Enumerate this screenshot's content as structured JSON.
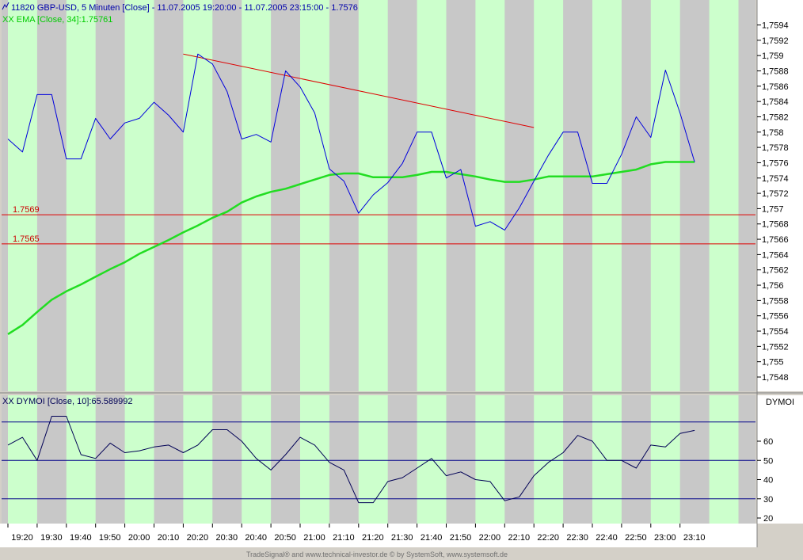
{
  "header": {
    "price_title": "11820  GBP-USD, 5 Minuten [Close] - 11.07.2005 19:20:00 - 11.07.2005 23:15:00 - 1.7576",
    "ema_title": "XX EMA [Close, 34]:1.75761",
    "osc_title": "XX DYMOI [Close, 10]:65.589992",
    "osc_axis_label": "DYMOI"
  },
  "footer": {
    "credit": "TradeSignal® and www.technical-investor.de © by  SystemSoft, www.systemsoft.de"
  },
  "colors": {
    "background_gray": "#c8c8c8",
    "band_green": "#ccffcc",
    "price_line": "#0000dd",
    "ema_line": "#22dd22",
    "trend_line": "#dd0000",
    "level_line": "#dd0000",
    "osc_line": "#000055",
    "osc_ref_line": "#000088",
    "ema_label": "#00cc00",
    "price_label": "#0000aa",
    "level_label": "#cc0000"
  },
  "chart_data": [
    {
      "type": "line",
      "title": "11820  GBP-USD, 5 Minuten [Close] - 11.07.2005 19:20:00 - 11.07.2005 23:15:00 - 1.7576",
      "x_ticks": [
        "19:20",
        "19:30",
        "19:40",
        "19:50",
        "20:00",
        "20:10",
        "20:20",
        "20:30",
        "20:40",
        "20:50",
        "21:00",
        "21:10",
        "21:20",
        "21:30",
        "21:40",
        "21:50",
        "22:00",
        "22:10",
        "22:20",
        "22:30",
        "22:40",
        "22:50",
        "23:00",
        "23:10"
      ],
      "y_ticks": [
        "1,7594",
        "1,7592",
        "1,759",
        "1,7588",
        "1,7586",
        "1,7584",
        "1,7582",
        "1,758",
        "1,7578",
        "1,7576",
        "1,7574",
        "1,7572",
        "1,757",
        "1,7568",
        "1,7566",
        "1,7564",
        "1,7562",
        "1,756",
        "1,7558",
        "1,7556",
        "1,7554",
        "1,7552",
        "1,755",
        "1,7548"
      ],
      "ylim": [
        1.7546,
        1.7596
      ],
      "grid": false,
      "series": [
        {
          "name": "11820  GBP-USD",
          "values": [
            1.75791,
            1.75774,
            1.75849,
            1.75849,
            1.75765,
            1.75765,
            1.75818,
            1.75791,
            1.75812,
            1.75818,
            1.75839,
            1.75822,
            1.758,
            1.75902,
            1.75889,
            1.75853,
            1.75791,
            1.75797,
            1.75787,
            1.7588,
            1.75859,
            1.75825,
            1.75752,
            1.75736,
            1.75694,
            1.75718,
            1.75734,
            1.75759,
            1.758,
            1.758,
            1.7574,
            1.75751,
            1.75677,
            1.75683,
            1.75672,
            1.75701,
            1.75736,
            1.7577,
            1.758,
            1.758,
            1.75733,
            1.75733,
            1.75771,
            1.7582,
            1.75793,
            1.75881,
            1.75825,
            1.75761
          ]
        },
        {
          "name": "EMA [Close, 34]",
          "values": [
            1.75536,
            1.75548,
            1.75565,
            1.75581,
            1.75592,
            1.75601,
            1.75611,
            1.75621,
            1.7563,
            1.75641,
            1.7565,
            1.75659,
            1.75669,
            1.75678,
            1.75688,
            1.75696,
            1.75708,
            1.75716,
            1.75722,
            1.75726,
            1.75732,
            1.75738,
            1.75744,
            1.75746,
            1.75746,
            1.75741,
            1.75741,
            1.75741,
            1.75744,
            1.75748,
            1.75748,
            1.75745,
            1.75742,
            1.75738,
            1.75735,
            1.75735,
            1.75738,
            1.75742,
            1.75742,
            1.75742,
            1.75742,
            1.75745,
            1.75748,
            1.75751,
            1.75758,
            1.75761,
            1.75761,
            1.75761
          ]
        }
      ],
      "trendline": {
        "from_index": 12,
        "from_value": 1.75902,
        "to_index": 36,
        "to_value": 1.75806
      },
      "levels": [
        {
          "label": "1.7569",
          "value": 1.75692
        },
        {
          "label": "1.7565",
          "value": 1.75654
        }
      ]
    },
    {
      "type": "line",
      "title": "XX DYMOI [Close, 10]:65.589992",
      "y_ticks": [
        "60",
        "50",
        "40",
        "30",
        "20"
      ],
      "ylim": [
        18,
        76
      ],
      "reference_lines": [
        70,
        50,
        30
      ],
      "series": [
        {
          "name": "DYMOI [Close, 10]",
          "values": [
            58,
            62,
            50,
            73,
            73,
            53,
            51,
            59,
            54,
            55,
            57,
            58,
            54,
            58,
            66,
            66,
            60,
            51,
            45,
            53,
            62,
            58,
            49,
            45,
            28,
            28,
            39,
            41,
            46,
            51,
            42,
            44,
            40,
            39,
            29,
            31,
            42,
            49,
            54,
            63,
            60,
            50,
            50,
            46,
            58,
            57,
            64,
            65.59
          ]
        }
      ]
    }
  ]
}
